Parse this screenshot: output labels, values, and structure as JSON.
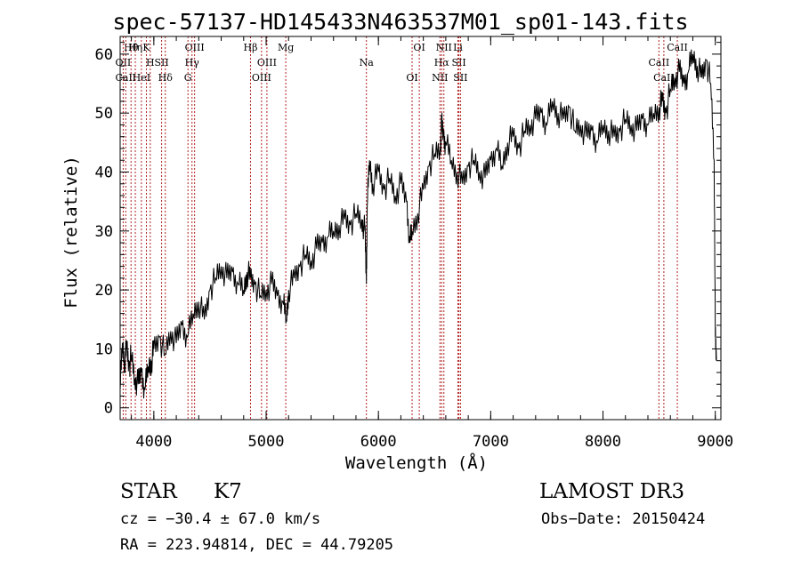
{
  "chart_data": {
    "type": "line",
    "title": "spec-57137-HD145433N463537M01_sp01-143.fits",
    "xlabel": "Wavelength (Å)",
    "ylabel": "Flux (relative)",
    "xlim": [
      3700,
      9050
    ],
    "ylim": [
      -2,
      63
    ],
    "x_ticks": [
      4000,
      5000,
      6000,
      7000,
      8000,
      9000
    ],
    "x_tick_labels": [
      "4000",
      "5000",
      "6000",
      "7000",
      "8000",
      "9000"
    ],
    "y_ticks": [
      0,
      10,
      20,
      30,
      40,
      50,
      60
    ],
    "y_tick_labels": [
      "0",
      "10",
      "20",
      "30",
      "40",
      "50",
      "60"
    ],
    "series": [
      {
        "name": "spectrum",
        "color": "#000000",
        "x": [
          3700,
          3720,
          3740,
          3760,
          3780,
          3800,
          3830,
          3860,
          3890,
          3920,
          3950,
          3980,
          4000,
          4050,
          4100,
          4150,
          4200,
          4250,
          4300,
          4350,
          4400,
          4450,
          4500,
          4550,
          4600,
          4650,
          4700,
          4750,
          4800,
          4830,
          4860,
          4900,
          4950,
          5000,
          5050,
          5100,
          5150,
          5180,
          5200,
          5250,
          5300,
          5350,
          5400,
          5450,
          5500,
          5550,
          5600,
          5650,
          5700,
          5750,
          5800,
          5850,
          5880,
          5893,
          5900,
          5920,
          5950,
          6000,
          6050,
          6100,
          6150,
          6200,
          6250,
          6280,
          6300,
          6350,
          6400,
          6450,
          6500,
          6550,
          6563,
          6580,
          6600,
          6650,
          6700,
          6750,
          6800,
          6850,
          6900,
          6950,
          7000,
          7050,
          7100,
          7150,
          7200,
          7250,
          7300,
          7350,
          7400,
          7450,
          7500,
          7550,
          7600,
          7650,
          7700,
          7750,
          7800,
          7850,
          7900,
          7950,
          8000,
          8050,
          8100,
          8150,
          8200,
          8250,
          8300,
          8350,
          8400,
          8450,
          8500,
          8530,
          8560,
          8600,
          8640,
          8680,
          8720,
          8760,
          8800,
          8840,
          8880,
          8920,
          8960,
          8990,
          9000,
          9010
        ],
        "y": [
          3,
          11,
          8,
          10,
          7,
          9,
          5,
          4,
          6,
          3,
          7,
          8,
          10,
          12,
          9,
          13,
          11,
          14,
          12,
          16,
          18,
          15,
          20,
          22,
          24,
          22,
          23,
          21,
          20,
          23,
          22,
          21,
          19,
          20,
          21,
          19,
          18,
          15,
          20,
          22,
          24,
          26,
          25,
          27,
          28,
          29,
          30,
          31,
          32,
          31,
          33,
          32,
          30,
          21,
          34,
          42,
          38,
          40,
          37,
          39,
          36,
          38,
          35,
          28,
          30,
          33,
          37,
          41,
          43,
          44,
          48,
          46,
          45,
          42,
          40,
          38,
          41,
          42,
          40,
          39,
          42,
          44,
          41,
          45,
          46,
          44,
          47,
          48,
          49,
          50,
          48,
          52,
          50,
          49,
          51,
          47,
          48,
          46,
          47,
          45,
          48,
          47,
          46,
          47,
          49,
          48,
          47,
          49,
          48,
          50,
          51,
          52,
          50,
          54,
          56,
          57,
          55,
          57,
          60,
          58,
          56,
          59,
          55,
          42,
          12,
          8
        ]
      }
    ],
    "line_markers": [
      {
        "label": "Hθ",
        "x": 3797
      },
      {
        "label": "OII",
        "x": 3727
      },
      {
        "label": "CaII",
        "x": 3750
      },
      {
        "label": "K",
        "x": 3934
      },
      {
        "label": "H",
        "x": 3968
      },
      {
        "label": "HeI",
        "x": 3889
      },
      {
        "label": "Hη",
        "x": 3835
      },
      {
        "label": "SII",
        "x": 4069
      },
      {
        "label": "Hδ",
        "x": 4102
      },
      {
        "label": "OIII",
        "x": 4363
      },
      {
        "label": "Hγ",
        "x": 4340
      },
      {
        "label": "G",
        "x": 4304
      },
      {
        "label": "Hβ",
        "x": 4861
      },
      {
        "label": "OIII",
        "x": 5007
      },
      {
        "label": "OIII",
        "x": 4959
      },
      {
        "label": "Mg",
        "x": 5175
      },
      {
        "label": "Na",
        "x": 5893
      },
      {
        "label": "OI",
        "x": 6300
      },
      {
        "label": "OI",
        "x": 6364
      },
      {
        "label": "Hα",
        "x": 6563
      },
      {
        "label": "NII",
        "x": 6548
      },
      {
        "label": "NII",
        "x": 6583
      },
      {
        "label": "SII",
        "x": 6717
      },
      {
        "label": "SII",
        "x": 6731
      },
      {
        "label": "Li",
        "x": 6708
      },
      {
        "label": "CaII",
        "x": 8498
      },
      {
        "label": "CaII",
        "x": 8542
      },
      {
        "label": "CaII",
        "x": 8662
      }
    ],
    "annotations": {
      "type_label": "STAR",
      "subclass": "K7",
      "survey": "LAMOST DR3",
      "cz": "cz = −30.4 ± 67.0 km/s",
      "obs_date": "Obs−Date: 20150424",
      "coords": "RA = 223.94814, DEC =  44.79205"
    }
  }
}
